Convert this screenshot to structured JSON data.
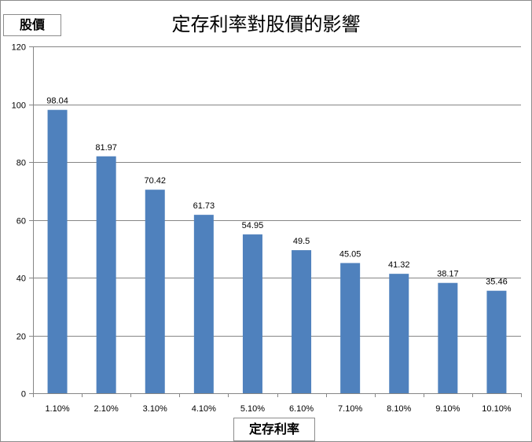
{
  "chart_data": {
    "type": "bar",
    "title": "定存利率對股價的影響",
    "ylabel": "股價",
    "xlabel": "定存利率",
    "categories": [
      "1.10%",
      "2.10%",
      "3.10%",
      "4.10%",
      "5.10%",
      "6.10%",
      "7.10%",
      "8.10%",
      "9.10%",
      "10.10%"
    ],
    "series": [
      {
        "values": [
          98.04,
          81.97,
          70.42,
          61.73,
          54.95,
          49.5,
          45.05,
          41.32,
          38.17,
          35.46
        ],
        "data_labels": [
          "98.04",
          "81.97",
          "70.42",
          "61.73",
          "54.95",
          "49.5",
          "45.05",
          "41.32",
          "38.17",
          "35.46"
        ],
        "color": "#4f81bd"
      }
    ],
    "ylim": [
      0,
      120
    ],
    "y_ticks": [
      "0",
      "20",
      "40",
      "60",
      "80",
      "100",
      "120"
    ],
    "grid": true,
    "legend": "none"
  }
}
